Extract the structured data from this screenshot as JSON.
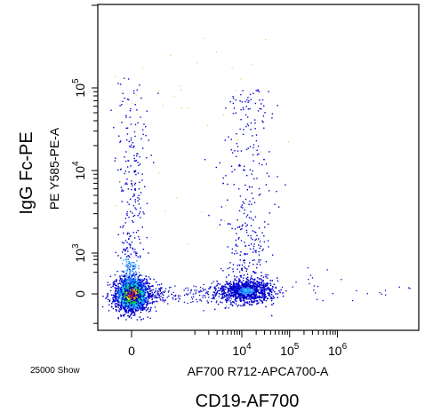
{
  "chart_data": {
    "type": "scatter",
    "subtype": "flow-cytometry-density-dot-plot",
    "xlabel": "CD19-AF700",
    "x_parameter": "AF700 R712-APCA700-A",
    "ylabel": "IgG Fc-PE",
    "y_parameter": "PE Y585-PE-A",
    "event_label": "25000 Show",
    "x_scale": "biexponential",
    "y_scale": "biexponential",
    "xlim": [
      -1000,
      1000000
    ],
    "ylim": [
      -400,
      100000
    ],
    "x_ticks": [
      {
        "value": 0,
        "base": "0",
        "exp": ""
      },
      {
        "value": 10000,
        "base": "10",
        "exp": "4"
      },
      {
        "value": 100000,
        "base": "10",
        "exp": "5"
      },
      {
        "value": 1000000,
        "base": "10",
        "exp": "6"
      }
    ],
    "y_ticks": [
      {
        "value": 0,
        "base": "0",
        "exp": ""
      },
      {
        "value": 1000,
        "base": "10",
        "exp": "3"
      },
      {
        "value": 10000,
        "base": "10",
        "exp": "4"
      },
      {
        "value": 100000,
        "base": "10",
        "exp": "5"
      }
    ],
    "grid": false,
    "legend": "none",
    "density_colors": [
      "#0000cc",
      "#1e90ff",
      "#00d0d0",
      "#20c040",
      "#f0e000",
      "#ff8000",
      "#e02000"
    ],
    "populations": [
      {
        "name": "CD19-negative cluster",
        "center_x": 0,
        "center_y": 0,
        "event_share": 0.62
      },
      {
        "name": "CD19-positive cluster",
        "center_x": 12000,
        "center_y": 0,
        "event_share": 0.3
      },
      {
        "name": "CD19-positive IgG+ tail",
        "center_x": 13000,
        "center_y": 8000,
        "event_share": 0.05
      },
      {
        "name": "CD19-negative IgG+ tail",
        "center_x": 200,
        "center_y": 2500,
        "event_share": 0.03
      }
    ]
  }
}
